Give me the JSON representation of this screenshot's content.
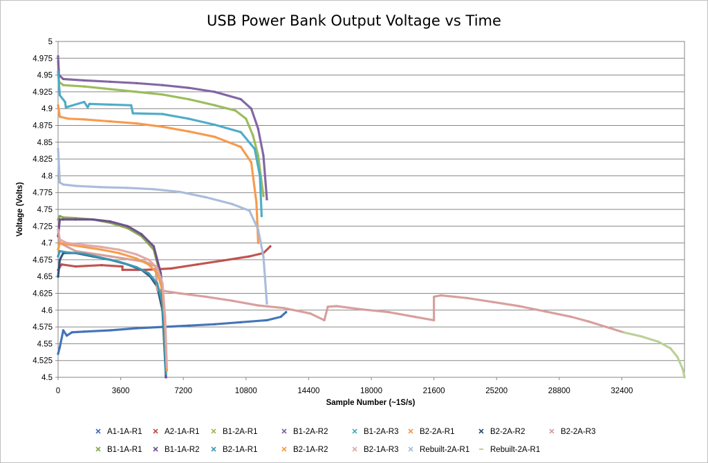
{
  "chart_data": {
    "type": "scatter",
    "title": "USB Power Bank Output Voltage vs Time",
    "xlabel": "Sample Number (~1S/s)",
    "ylabel": "Voltage (Volts)",
    "xlim": [
      0,
      36000
    ],
    "ylim": [
      4.5,
      5.0
    ],
    "x_ticks": [
      "0",
      "3600",
      "7200",
      "10800",
      "14400",
      "18000",
      "21600",
      "25200",
      "28800",
      "32400"
    ],
    "y_ticks": [
      "4.5",
      "4.525",
      "4.55",
      "4.575",
      "4.6",
      "4.625",
      "4.65",
      "4.675",
      "4.7",
      "4.725",
      "4.75",
      "4.775",
      "4.8",
      "4.825",
      "4.85",
      "4.875",
      "4.9",
      "4.925",
      "4.95",
      "4.975",
      "5"
    ],
    "grid": "horizontal",
    "legend_position": "bottom",
    "series": [
      {
        "name": "A1-1A-R1",
        "color": "#3c6eb4",
        "marker": "cross",
        "x": [
          0,
          100,
          300,
          500,
          800,
          1500,
          3000,
          4500,
          6000,
          7500,
          9000,
          10500,
          12000,
          12800,
          13100
        ],
        "y": [
          4.535,
          4.545,
          4.57,
          4.562,
          4.567,
          4.568,
          4.57,
          4.573,
          4.575,
          4.577,
          4.579,
          4.582,
          4.585,
          4.59,
          4.597
        ]
      },
      {
        "name": "A2-1A-R1",
        "color": "#be4b48",
        "marker": "cross",
        "x": [
          0,
          200,
          1000,
          2500,
          3700,
          3700,
          5000,
          6500,
          8000,
          9500,
          11000,
          11800,
          12200
        ],
        "y": [
          4.66,
          4.668,
          4.665,
          4.667,
          4.665,
          4.66,
          4.66,
          4.662,
          4.668,
          4.674,
          4.68,
          4.685,
          4.695
        ]
      },
      {
        "name": "B1-2A-R1",
        "color": "#98b954",
        "marker": "cross",
        "x": [
          0,
          50,
          300,
          1500,
          3000,
          4500,
          6000,
          7500,
          9000,
          10200,
          10800,
          11200,
          11500,
          11800
        ],
        "y": [
          4.97,
          4.94,
          4.935,
          4.933,
          4.929,
          4.925,
          4.921,
          4.914,
          4.905,
          4.897,
          4.885,
          4.86,
          4.83,
          4.77
        ]
      },
      {
        "name": "B1-2A-R2",
        "color": "#7d5fa0",
        "marker": "cross",
        "x": [
          0,
          50,
          300,
          1500,
          3000,
          4500,
          6000,
          7500,
          9000,
          10500,
          11100,
          11500,
          11800,
          12000
        ],
        "y": [
          4.978,
          4.95,
          4.944,
          4.942,
          4.94,
          4.938,
          4.935,
          4.931,
          4.925,
          4.914,
          4.9,
          4.87,
          4.83,
          4.765
        ]
      },
      {
        "name": "B1-2A-R3",
        "color": "#46aac5",
        "marker": "cross",
        "x": [
          0,
          100,
          400,
          450,
          1500,
          1700,
          1800,
          3000,
          4200,
          4300,
          6000,
          7500,
          9000,
          10500,
          11300,
          11600,
          11700
        ],
        "y": [
          4.955,
          4.92,
          4.91,
          4.902,
          4.91,
          4.902,
          4.907,
          4.906,
          4.905,
          4.893,
          4.892,
          4.885,
          4.876,
          4.865,
          4.84,
          4.8,
          4.74
        ]
      },
      {
        "name": "B2-2A-R1",
        "color": "#f79646",
        "marker": "cross",
        "x": [
          0,
          100,
          600,
          1500,
          3000,
          4500,
          6000,
          7500,
          9000,
          10500,
          11100,
          11400,
          11500
        ],
        "y": [
          4.905,
          4.888,
          4.885,
          4.884,
          4.881,
          4.878,
          4.873,
          4.866,
          4.858,
          4.843,
          4.82,
          4.76,
          4.7
        ]
      },
      {
        "name": "B2-2A-R2",
        "color": "#2c4d75",
        "marker": "cross",
        "x": [
          0,
          100,
          300,
          1000,
          2000,
          3000,
          4000,
          4800,
          5300,
          5700,
          6000,
          6100,
          6200
        ],
        "y": [
          4.65,
          4.675,
          4.685,
          4.685,
          4.68,
          4.675,
          4.668,
          4.66,
          4.65,
          4.635,
          4.6,
          4.55,
          4.5
        ]
      },
      {
        "name": "B2-2A-R3",
        "color": "#d69b99",
        "marker": "cross",
        "x": [
          0,
          100,
          1000,
          3000,
          5000,
          5600,
          5700,
          7000,
          8500,
          10000,
          11500,
          13000,
          14500,
          15300,
          15500,
          16000,
          17500,
          19000,
          20500,
          21600,
          21600,
          22000,
          23500,
          25000,
          26500,
          28000,
          29500,
          30500,
          31500,
          32500
        ],
        "y": [
          4.72,
          4.7,
          4.688,
          4.68,
          4.672,
          4.665,
          4.63,
          4.625,
          4.62,
          4.614,
          4.607,
          4.603,
          4.595,
          4.585,
          4.605,
          4.606,
          4.601,
          4.597,
          4.59,
          4.585,
          4.62,
          4.622,
          4.618,
          4.612,
          4.606,
          4.598,
          4.59,
          4.583,
          4.575,
          4.567
        ]
      },
      {
        "name": "B1-1A-R1",
        "color": "#87a34a",
        "marker": "cross",
        "x": [
          0,
          100,
          300,
          1000,
          2000,
          3000,
          4000,
          4800,
          5500,
          5900,
          6100,
          6200
        ],
        "y": [
          4.735,
          4.74,
          4.738,
          4.737,
          4.735,
          4.73,
          4.722,
          4.71,
          4.69,
          4.65,
          4.58,
          4.505
        ]
      },
      {
        "name": "B1-1A-R2",
        "color": "#6a4c8c",
        "marker": "cross",
        "x": [
          0,
          100,
          300,
          1000,
          2000,
          3000,
          4000,
          4800,
          5500,
          5900,
          6100,
          6200
        ],
        "y": [
          4.71,
          4.735,
          4.735,
          4.735,
          4.735,
          4.732,
          4.725,
          4.713,
          4.695,
          4.655,
          4.59,
          4.5
        ]
      },
      {
        "name": "B2-1A-R1",
        "color": "#3a99b3",
        "marker": "cross",
        "x": [
          0,
          100,
          500,
          1500,
          2500,
          3500,
          4500,
          5200,
          5700,
          6000,
          6100,
          6200
        ],
        "y": [
          4.68,
          4.688,
          4.686,
          4.684,
          4.678,
          4.672,
          4.664,
          4.655,
          4.64,
          4.61,
          4.56,
          4.505
        ]
      },
      {
        "name": "B2-1A-R2",
        "color": "#f59a42",
        "marker": "cross",
        "x": [
          0,
          100,
          500,
          1500,
          2500,
          3500,
          4500,
          5200,
          5700,
          6000,
          6150,
          6250
        ],
        "y": [
          4.69,
          4.7,
          4.698,
          4.694,
          4.69,
          4.685,
          4.677,
          4.668,
          4.655,
          4.63,
          4.58,
          4.51
        ]
      },
      {
        "name": "B2-1A-R3",
        "color": "#e0a7a6",
        "marker": "cross",
        "x": [
          0,
          100,
          500,
          1500,
          2500,
          3500,
          4500,
          5200,
          5700,
          6000,
          6150,
          6250
        ],
        "y": [
          4.72,
          4.705,
          4.7,
          4.697,
          4.694,
          4.69,
          4.683,
          4.675,
          4.663,
          4.64,
          4.59,
          4.515
        ]
      },
      {
        "name": "Rebuilt-2A-R1",
        "color": "#a7b9da",
        "marker": "cross",
        "x": [
          0,
          100,
          300,
          1000,
          2500,
          4000,
          5500,
          7000,
          8500,
          10000,
          11000,
          11500,
          11800,
          12000
        ],
        "y": [
          4.84,
          4.79,
          4.787,
          4.785,
          4.783,
          4.782,
          4.78,
          4.776,
          4.768,
          4.758,
          4.748,
          4.72,
          4.68,
          4.61
        ]
      },
      {
        "name": "Rebuilt-2A-R1",
        "color": "#b8cf94",
        "marker": "dash",
        "x": [
          32500,
          33500,
          34500,
          35200,
          35600,
          35900,
          36000
        ],
        "y": [
          4.567,
          4.561,
          4.553,
          4.543,
          4.53,
          4.512,
          4.5
        ]
      }
    ]
  }
}
